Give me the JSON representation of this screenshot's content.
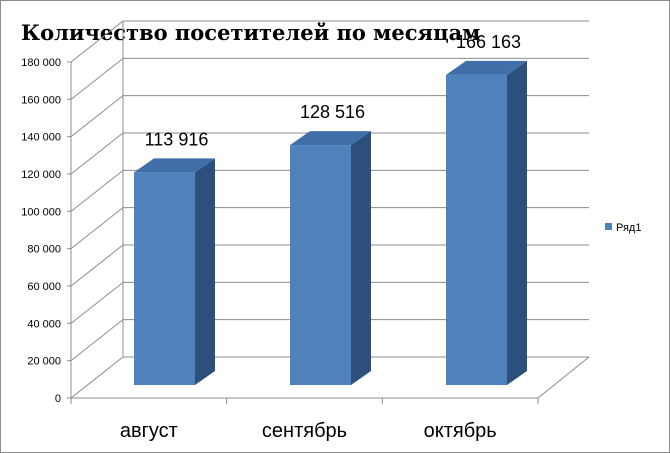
{
  "chart_data": {
    "type": "bar",
    "title": "Количество посетителей по месяцам",
    "categories": [
      "август",
      "сентябрь",
      "октябрь"
    ],
    "series": [
      {
        "name": "Ряд1",
        "values": [
          113916,
          128516,
          166163
        ]
      }
    ],
    "data_labels": [
      "113 916",
      "128 516",
      "166 163"
    ],
    "yticks": [
      "0",
      "20 000",
      "40 000",
      "60 000",
      "80 000",
      "100 000",
      "120 000",
      "140 000",
      "160 000",
      "180 000"
    ],
    "ylim": [
      0,
      180000
    ],
    "grid": true,
    "legend_position": "right",
    "bar_style": "3d",
    "colors": {
      "bar_front": "#4f81bd",
      "bar_side": "#2c4f7c",
      "bar_top": "#3f6ea8",
      "grid": "#8c8c8c"
    }
  }
}
